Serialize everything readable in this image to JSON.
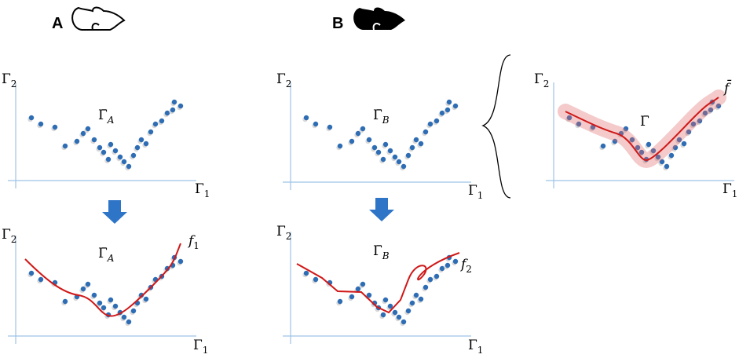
{
  "headings": [
    "A",
    "B"
  ],
  "panels": [
    {
      "title": {
        "symbol": "Γ̄",
        "subscript": "A"
      },
      "x_axis": {
        "symbol": "Γ",
        "subscript": "1"
      },
      "y_axis": {
        "symbol": "Γ",
        "subscript": "2"
      }
    },
    {
      "title": {
        "symbol": "Γ̄",
        "subscript": "A"
      },
      "x_axis": {
        "symbol": "Γ",
        "subscript": "1"
      },
      "y_axis": {
        "symbol": "Γ",
        "subscript": "2"
      },
      "curve": {
        "symbol": "f",
        "subscript": "1"
      }
    },
    {
      "title": {
        "symbol": "Γ̄",
        "subscript": "B"
      },
      "x_axis": {
        "symbol": "Γ",
        "subscript": "1"
      },
      "y_axis": {
        "symbol": "Γ",
        "subscript": "2"
      }
    },
    {
      "title": {
        "symbol": "Γ̄",
        "subscript": "B"
      },
      "x_axis": {
        "symbol": "Γ",
        "subscript": "1"
      },
      "y_axis": {
        "symbol": "Γ",
        "subscript": "2"
      },
      "curve": {
        "symbol": "f",
        "subscript": "2"
      }
    },
    {
      "title": {
        "symbol": "Γ̄"
      },
      "x_axis": {
        "symbol": "Γ",
        "subscript": "1"
      },
      "y_axis": {
        "symbol": "Γ",
        "subscript": "2"
      },
      "curve": {
        "symbol": "f̄"
      }
    }
  ]
}
